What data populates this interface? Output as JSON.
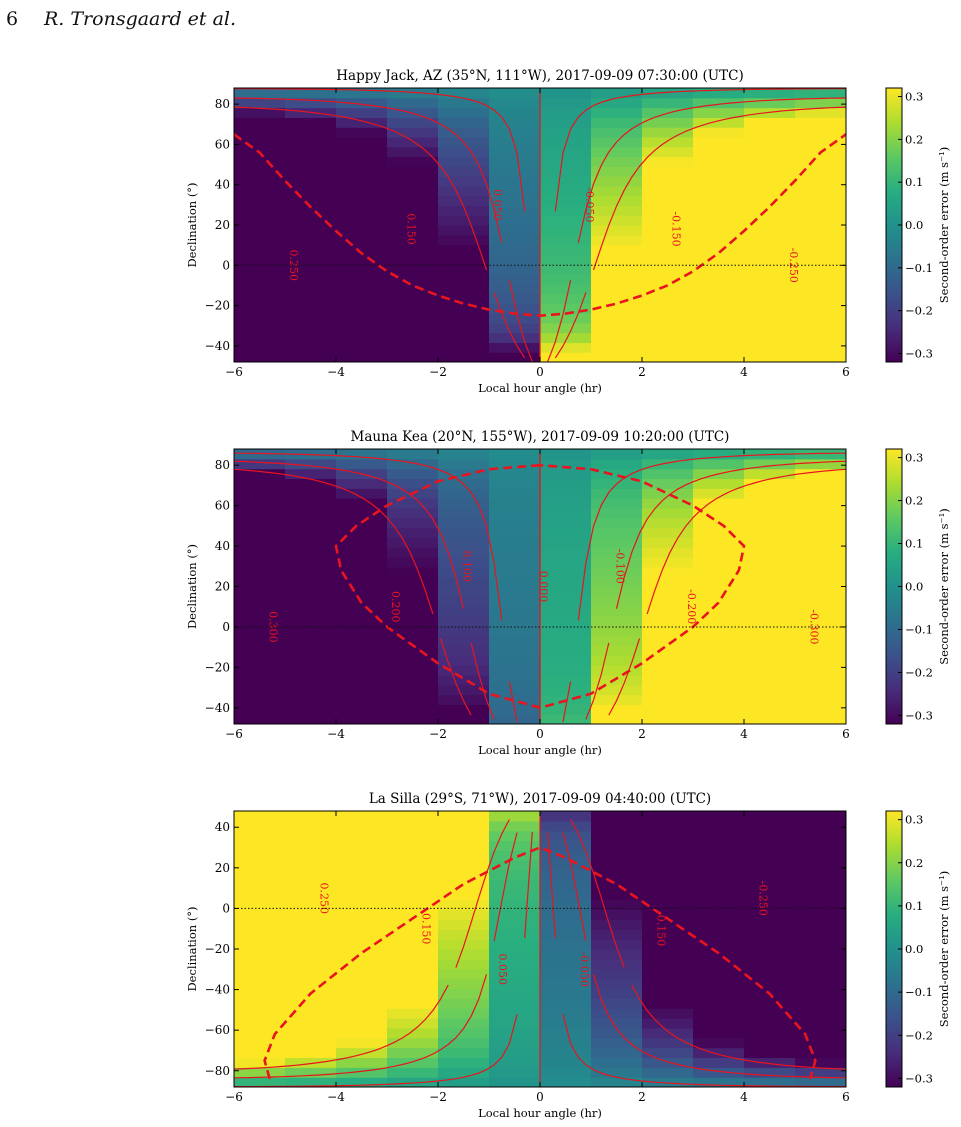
{
  "header": {
    "page_number": "6",
    "authors": "R. Tronsgaard et al."
  },
  "colors": {
    "viridis": [
      "#440154",
      "#472d7b",
      "#3b528b",
      "#2c728e",
      "#21918c",
      "#28ae80",
      "#5ec962",
      "#addc30",
      "#fde725"
    ],
    "contour": "#e8141e",
    "trajectory": "#e8141e",
    "axis": "#000000"
  },
  "chart_data": [
    {
      "type": "heatmap",
      "title": "Happy Jack, AZ (35°N, 111°W), 2017-09-09 07:30:00 (UTC)",
      "xlabel": "Local hour angle (hr)",
      "ylabel": "Declination (°)",
      "xlim": [
        -6,
        6
      ],
      "ylim": [
        -48,
        88
      ],
      "xticks": [
        -6,
        -4,
        -2,
        0,
        2,
        4,
        6
      ],
      "yticks": [
        -40,
        -20,
        0,
        20,
        40,
        60,
        80
      ],
      "colorbar": {
        "label": "Second-order error (m s⁻¹)",
        "range": [
          -0.32,
          0.32
        ],
        "ticks": [
          -0.3,
          -0.2,
          -0.1,
          0.0,
          0.1,
          0.2,
          0.3
        ]
      },
      "latitude_deg": 35,
      "contour_levels": [
        -0.25,
        -0.15,
        -0.05,
        0.05,
        0.15,
        0.25
      ],
      "contour_labels": [
        {
          "text": "0.250",
          "x": -4.9,
          "y": 0
        },
        {
          "text": "0.150",
          "x": -2.6,
          "y": 18
        },
        {
          "text": "0.050",
          "x": -0.9,
          "y": 30
        },
        {
          "text": "-0.050",
          "x": 0.9,
          "y": 30
        },
        {
          "text": "-0.150",
          "x": 2.6,
          "y": 18
        },
        {
          "text": "-0.250",
          "x": 4.9,
          "y": 0
        }
      ],
      "horizon_curve": {
        "x": [
          -6.0,
          -5.5,
          -5.0,
          -4.5,
          -4.0,
          -3.5,
          -3.0,
          -2.5,
          -2.0,
          -1.5,
          -1.0,
          -0.5,
          0.0,
          0.5,
          1.0,
          1.5,
          2.0,
          2.5,
          3.0,
          3.5,
          4.0,
          4.5,
          5.0,
          5.5,
          6.0
        ],
        "y": [
          65,
          56,
          42,
          29,
          17,
          6,
          -3,
          -10,
          -15,
          -19,
          -22,
          -24,
          -25,
          -24,
          -22,
          -19,
          -15,
          -10,
          -3,
          6,
          17,
          29,
          42,
          56,
          65
        ]
      }
    },
    {
      "type": "heatmap",
      "title": "Mauna Kea (20°N, 155°W), 2017-09-09 10:20:00 (UTC)",
      "xlabel": "Local hour angle (hr)",
      "ylabel": "Declination (°)",
      "xlim": [
        -6,
        6
      ],
      "ylim": [
        -48,
        88
      ],
      "xticks": [
        -6,
        -4,
        -2,
        0,
        2,
        4,
        6
      ],
      "yticks": [
        -40,
        -20,
        0,
        20,
        40,
        60,
        80
      ],
      "colorbar": {
        "label": "Second-order error (m s⁻¹)",
        "range": [
          -0.32,
          0.32
        ],
        "ticks": [
          -0.3,
          -0.2,
          -0.1,
          0.0,
          0.1,
          0.2,
          0.3
        ]
      },
      "latitude_deg": 20,
      "contour_levels": [
        -0.3,
        -0.2,
        -0.1,
        0.0,
        0.1,
        0.2,
        0.3
      ],
      "contour_labels": [
        {
          "text": "0.300",
          "x": -5.3,
          "y": 0
        },
        {
          "text": "0.200",
          "x": -2.9,
          "y": 10
        },
        {
          "text": "0.100",
          "x": -1.5,
          "y": 30
        },
        {
          "text": "0.000",
          "x": 0.0,
          "y": 20
        },
        {
          "text": "-0.100",
          "x": 1.5,
          "y": 30
        },
        {
          "text": "-0.200",
          "x": 2.9,
          "y": 10
        },
        {
          "text": "-0.300",
          "x": 5.3,
          "y": 0
        }
      ],
      "horizon_curve": {
        "x": [
          0.0,
          -1.0,
          -2.0,
          -3.0,
          -3.6,
          -4.0,
          -3.9,
          -3.5,
          -3.0,
          -2.0,
          -1.0,
          0.0,
          1.0,
          2.0,
          3.0,
          3.5,
          3.9,
          4.0,
          3.6,
          3.0,
          2.0,
          1.0,
          0.0
        ],
        "y": [
          80,
          78,
          72,
          60,
          50,
          40,
          28,
          12,
          0,
          -18,
          -33,
          -40,
          -33,
          -18,
          0,
          12,
          28,
          40,
          50,
          60,
          72,
          78,
          80
        ]
      }
    },
    {
      "type": "heatmap",
      "title": "La Silla (29°S, 71°W), 2017-09-09 04:40:00 (UTC)",
      "xlabel": "Local hour angle (hr)",
      "ylabel": "Declination (°)",
      "xlim": [
        -6,
        6
      ],
      "ylim": [
        -88,
        48
      ],
      "xticks": [
        -6,
        -4,
        -2,
        0,
        2,
        4,
        6
      ],
      "yticks": [
        -80,
        -60,
        -40,
        -20,
        0,
        20,
        40
      ],
      "colorbar": {
        "label": "Second-order error (m s⁻¹)",
        "range": [
          -0.32,
          0.32
        ],
        "ticks": [
          -0.3,
          -0.2,
          -0.1,
          0.0,
          0.1,
          0.2,
          0.3
        ]
      },
      "latitude_deg": -29,
      "contour_levels": [
        -0.25,
        -0.15,
        -0.05,
        0.05,
        0.15,
        0.25
      ],
      "contour_labels": [
        {
          "text": "0.250",
          "x": -4.3,
          "y": 5
        },
        {
          "text": "0.150",
          "x": -2.3,
          "y": -10
        },
        {
          "text": "0.050",
          "x": -0.8,
          "y": -30
        },
        {
          "text": "-0.050",
          "x": 0.8,
          "y": -30
        },
        {
          "text": "-0.150",
          "x": 2.3,
          "y": -10
        },
        {
          "text": "-0.250",
          "x": 4.3,
          "y": 5
        }
      ],
      "horizon_curve": {
        "x": [
          -5.3,
          -5.4,
          -5.2,
          -4.5,
          -3.5,
          -2.5,
          -1.5,
          -0.5,
          0.0,
          0.5,
          1.5,
          2.5,
          3.5,
          4.5,
          5.2,
          5.4,
          5.3
        ],
        "y": [
          -84,
          -75,
          -62,
          -42,
          -22,
          -5,
          12,
          25,
          30,
          25,
          12,
          -5,
          -22,
          -42,
          -62,
          -75,
          -84
        ]
      }
    }
  ]
}
